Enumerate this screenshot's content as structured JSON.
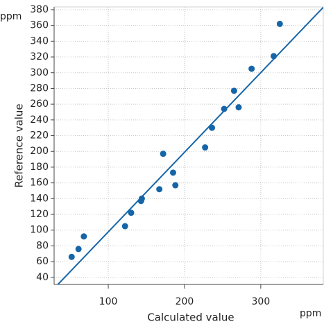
{
  "chart_data": {
    "type": "scatter",
    "x_label": "Calculated value",
    "y_label": "Reference value",
    "x_unit": "ppm",
    "y_unit": "ppm",
    "series": [
      {
        "color": "#1565a8",
        "x": [
          52,
          61,
          68,
          122,
          130,
          143,
          144,
          167,
          172,
          185,
          188,
          227,
          236,
          252,
          271,
          265,
          288,
          317,
          325
        ],
        "values": [
          66,
          76,
          92,
          105,
          122,
          137,
          140,
          152,
          197,
          173,
          157,
          205,
          230,
          254,
          256,
          277,
          305,
          321,
          362
        ]
      }
    ],
    "line": {
      "color": "#1565a8",
      "x": [
        34,
        382
      ],
      "values": [
        31,
        383
      ]
    },
    "xlim": [
      29,
      382
    ],
    "ylim": [
      31,
      383.5
    ],
    "xticks": [
      100,
      200,
      300
    ],
    "yticks": [
      40,
      60,
      80,
      100,
      120,
      140,
      160,
      180,
      200,
      220,
      240,
      260,
      280,
      300,
      320,
      340,
      360,
      380
    ],
    "grid": true
  }
}
